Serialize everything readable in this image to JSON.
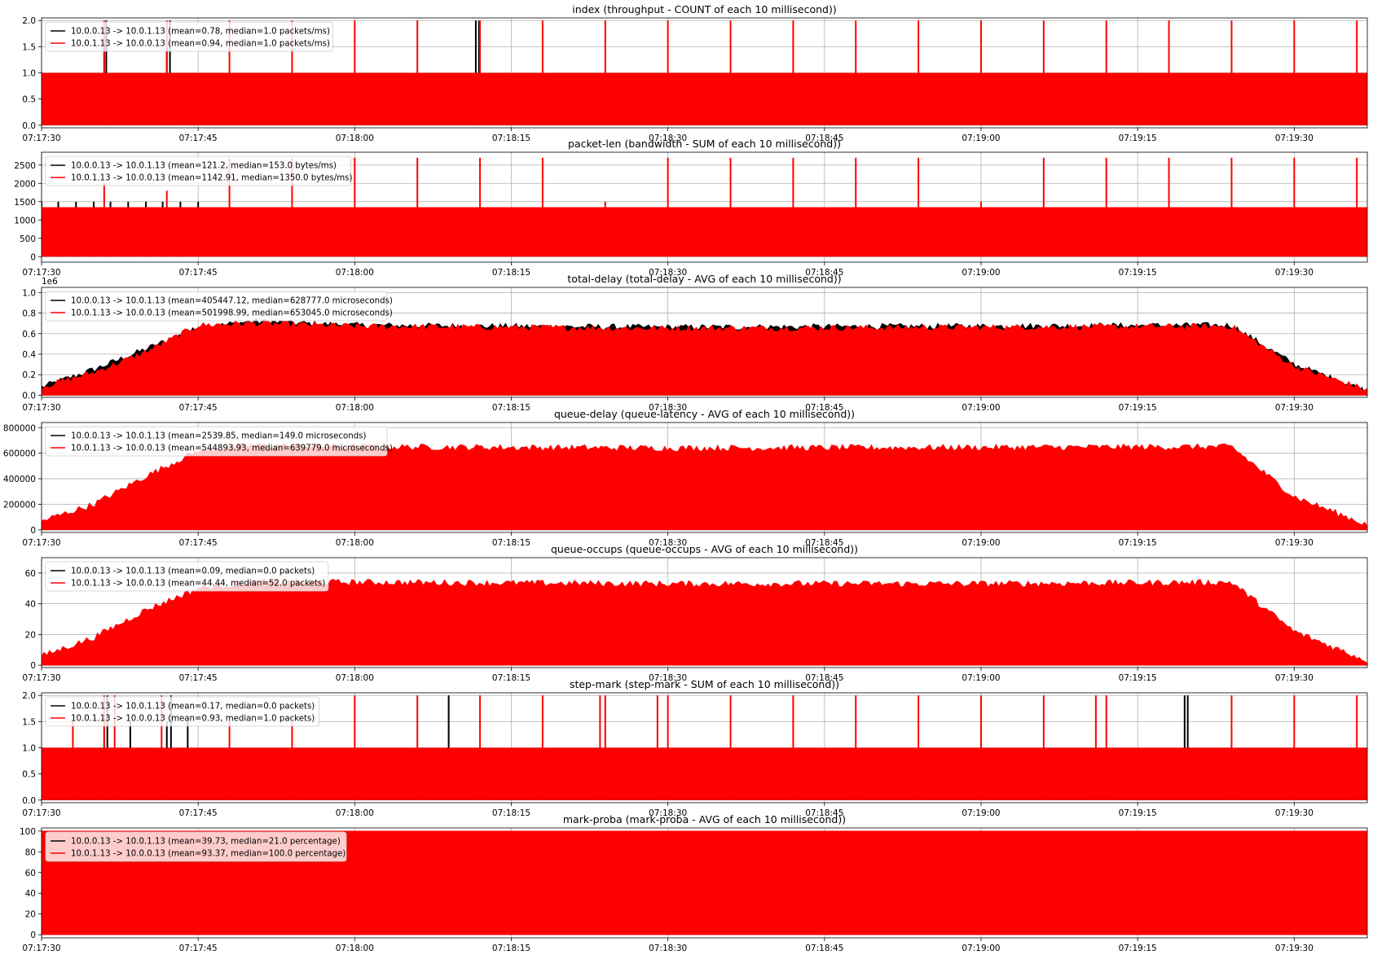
{
  "time_ticks": [
    "07:17:30",
    "07:17:45",
    "07:18:00",
    "07:18:15",
    "07:18:30",
    "07:18:45",
    "07:19:00",
    "07:19:15",
    "07:19:30"
  ],
  "x_range": [
    "07:17:30",
    "07:19:37"
  ],
  "colors": {
    "series_a": "#000000",
    "series_b": "#ff0000",
    "grid": "#b0b0b0"
  },
  "chart_data": [
    {
      "type": "area",
      "title": "index (throughput - COUNT of each 10 millisecond))",
      "xlabel": "",
      "ylabel": "",
      "ylim": [
        -0.05,
        2.05
      ],
      "yticks": [
        0.0,
        0.5,
        1.0,
        1.5,
        2.0
      ],
      "ytick_labels": [
        "0.0",
        "0.5",
        "1.0",
        "1.5",
        "2.0"
      ],
      "offset_text": "",
      "grid": true,
      "legend_position": "upper-left",
      "series": [
        {
          "name": "10.0.0.13 -> 10.0.1.13 (mean=0.78, median=1.0 packets/ms)",
          "color": "#000000",
          "base": 1.0,
          "spikes": [
            [
              "07:17:36",
              1.5
            ],
            [
              "07:17:36.2",
              2.0
            ],
            [
              "07:17:42",
              1.5
            ],
            [
              "07:17:42.3",
              2.0
            ],
            [
              "07:18:11.6",
              2.0
            ],
            [
              "07:18:11.9",
              2.0
            ]
          ]
        },
        {
          "name": "10.0.1.13 -> 10.0.0.13 (mean=0.94, median=1.0 packets/ms)",
          "color": "#ff0000",
          "base": 1.0,
          "spikes": [
            [
              "07:17:36",
              2.0
            ],
            [
              "07:17:42",
              2.0
            ],
            [
              "07:17:48",
              2.0
            ],
            [
              "07:17:54",
              2.0
            ],
            [
              "07:18:00",
              2.0
            ],
            [
              "07:18:06",
              2.0
            ],
            [
              "07:18:12",
              2.0
            ],
            [
              "07:18:18",
              2.0
            ],
            [
              "07:18:24",
              2.0
            ],
            [
              "07:18:30",
              2.0
            ],
            [
              "07:18:36",
              2.0
            ],
            [
              "07:18:42",
              2.0
            ],
            [
              "07:18:48",
              2.0
            ],
            [
              "07:18:54",
              2.0
            ],
            [
              "07:19:00",
              2.0
            ],
            [
              "07:19:06",
              2.0
            ],
            [
              "07:19:12",
              2.0
            ],
            [
              "07:19:18",
              2.0
            ],
            [
              "07:19:24",
              2.0
            ],
            [
              "07:19:30",
              2.0
            ],
            [
              "07:19:36",
              2.0
            ]
          ]
        }
      ]
    },
    {
      "type": "area",
      "title": "packet-len (bandwidth - SUM of each 10 millisecond))",
      "xlabel": "",
      "ylabel": "",
      "ylim": [
        -150,
        2850
      ],
      "yticks": [
        0,
        500,
        1000,
        1500,
        2000,
        2500
      ],
      "ytick_labels": [
        "0",
        "500",
        "1000",
        "1500",
        "2000",
        "2500"
      ],
      "offset_text": "",
      "grid": true,
      "legend_position": "upper-left",
      "series": [
        {
          "name": "10.0.0.13 -> 10.0.1.13 (mean=121.2, median=153.0 bytes/ms)",
          "color": "#000000",
          "base": 1350,
          "spikes": [
            [
              "07:17:30",
              1500
            ],
            [
              "07:17:31.6",
              1500
            ],
            [
              "07:17:33.3",
              1500
            ],
            [
              "07:17:35",
              1500
            ],
            [
              "07:17:36.6",
              1500
            ],
            [
              "07:17:38.3",
              1500
            ],
            [
              "07:17:40",
              1500
            ],
            [
              "07:17:41.6",
              1500
            ],
            [
              "07:17:43.3",
              1500
            ],
            [
              "07:17:45",
              1500
            ]
          ]
        },
        {
          "name": "10.0.1.13 -> 10.0.0.13 (mean=1142.91, median=1350.0 bytes/ms)",
          "color": "#ff0000",
          "base": 1350,
          "spikes": [
            [
              "07:17:36",
              2000
            ],
            [
              "07:17:42",
              1800
            ],
            [
              "07:17:48",
              2700
            ],
            [
              "07:17:54",
              2700
            ],
            [
              "07:18:00",
              2700
            ],
            [
              "07:18:06",
              2700
            ],
            [
              "07:18:12",
              2700
            ],
            [
              "07:18:18",
              2700
            ],
            [
              "07:18:24",
              1500
            ],
            [
              "07:18:30",
              2700
            ],
            [
              "07:18:36",
              2700
            ],
            [
              "07:18:42",
              2700
            ],
            [
              "07:18:48",
              2700
            ],
            [
              "07:18:54",
              2700
            ],
            [
              "07:19:00",
              1500
            ],
            [
              "07:19:06",
              2700
            ],
            [
              "07:19:12",
              2700
            ],
            [
              "07:19:18",
              2700
            ],
            [
              "07:19:24",
              2700
            ],
            [
              "07:19:30",
              2700
            ],
            [
              "07:19:36",
              2700
            ]
          ]
        }
      ]
    },
    {
      "type": "area",
      "title": "total-delay (total-delay - AVG of each 10 millisecond))",
      "xlabel": "",
      "ylabel": "",
      "ylim": [
        -0.02,
        1.05
      ],
      "yticks": [
        0.0,
        0.2,
        0.4,
        0.6,
        0.8,
        1.0
      ],
      "ytick_labels": [
        "0.0",
        "0.2",
        "0.4",
        "0.6",
        "0.8",
        "1.0"
      ],
      "offset_text": "1e6",
      "grid": true,
      "legend_position": "upper-left",
      "series": [
        {
          "name": "10.0.0.13 -> 10.0.1.13 (mean=405447.12, median=628777.0 microseconds)",
          "color": "#000000",
          "profile": [
            [
              "07:17:30",
              0.08
            ],
            [
              "07:17:35",
              0.25
            ],
            [
              "07:17:40",
              0.45
            ],
            [
              "07:17:45",
              0.65
            ],
            [
              "07:17:50",
              0.72
            ],
            [
              "07:18:00",
              0.68
            ],
            [
              "07:18:30",
              0.66
            ],
            [
              "07:19:24",
              0.68
            ],
            [
              "07:19:30",
              0.3
            ],
            [
              "07:19:37",
              0.04
            ]
          ]
        },
        {
          "name": "10.0.1.13 -> 10.0.0.13 (mean=501998.99, median=653045.0 microseconds)",
          "color": "#ff0000",
          "profile": [
            [
              "07:17:30",
              0.08
            ],
            [
              "07:17:35",
              0.22
            ],
            [
              "07:17:40",
              0.42
            ],
            [
              "07:17:45",
              0.68
            ],
            [
              "07:17:50",
              0.7
            ],
            [
              "07:18:00",
              0.67
            ],
            [
              "07:18:30",
              0.65
            ],
            [
              "07:19:00",
              0.66
            ],
            [
              "07:19:24",
              0.67
            ],
            [
              "07:19:30",
              0.28
            ],
            [
              "07:19:37",
              0.05
            ]
          ]
        }
      ]
    },
    {
      "type": "area",
      "title": "queue-delay (queue-latency - AVG of each 10 millisecond))",
      "xlabel": "",
      "ylabel": "",
      "ylim": [
        -20000,
        840000
      ],
      "yticks": [
        0,
        200000,
        400000,
        600000,
        800000
      ],
      "ytick_labels": [
        "0",
        "200000",
        "400000",
        "600000",
        "800000"
      ],
      "offset_text": "",
      "grid": true,
      "legend_position": "upper-left",
      "series": [
        {
          "name": "10.0.0.13 -> 10.0.1.13 (mean=2539.85, median=149.0 microseconds)",
          "color": "#000000",
          "profile": [
            [
              "07:17:30",
              0
            ],
            [
              "07:19:37",
              0
            ]
          ]
        },
        {
          "name": "10.0.1.13 -> 10.0.0.13 (mean=544893.93, median=639779.0 microseconds)",
          "color": "#ff0000",
          "profile": [
            [
              "07:17:30",
              70000
            ],
            [
              "07:17:35",
              200000
            ],
            [
              "07:17:40",
              420000
            ],
            [
              "07:17:45",
              620000
            ],
            [
              "07:17:50",
              660000
            ],
            [
              "07:18:00",
              650000
            ],
            [
              "07:18:30",
              640000
            ],
            [
              "07:19:00",
              645000
            ],
            [
              "07:19:24",
              650000
            ],
            [
              "07:19:30",
              260000
            ],
            [
              "07:19:37",
              40000
            ]
          ]
        }
      ]
    },
    {
      "type": "area",
      "title": "queue-occups (queue-occups - AVG of each 10 millisecond))",
      "xlabel": "",
      "ylabel": "",
      "ylim": [
        -1.5,
        70
      ],
      "yticks": [
        0,
        20,
        40,
        60
      ],
      "ytick_labels": [
        "0",
        "20",
        "40",
        "60"
      ],
      "offset_text": "",
      "grid": true,
      "legend_position": "upper-left",
      "series": [
        {
          "name": "10.0.0.13 -> 10.0.1.13 (mean=0.09, median=0.0 packets)",
          "color": "#000000",
          "profile": [
            [
              "07:17:30",
              0
            ],
            [
              "07:19:37",
              0
            ]
          ]
        },
        {
          "name": "10.0.1.13 -> 10.0.0.13 (mean=44.44, median=52.0 packets)",
          "color": "#ff0000",
          "profile": [
            [
              "07:17:30",
              6
            ],
            [
              "07:17:35",
              18
            ],
            [
              "07:17:40",
              36
            ],
            [
              "07:17:45",
              50
            ],
            [
              "07:17:50",
              54
            ],
            [
              "07:18:00",
              54
            ],
            [
              "07:18:30",
              53
            ],
            [
              "07:19:00",
              53
            ],
            [
              "07:19:24",
              54
            ],
            [
              "07:19:30",
              22
            ],
            [
              "07:19:37",
              3
            ]
          ]
        }
      ]
    },
    {
      "type": "area",
      "title": "step-mark (step-mark - SUM of each 10 millisecond))",
      "xlabel": "",
      "ylabel": "",
      "ylim": [
        -0.05,
        2.05
      ],
      "yticks": [
        0.0,
        0.5,
        1.0,
        1.5,
        2.0
      ],
      "ytick_labels": [
        "0.0",
        "0.5",
        "1.0",
        "1.5",
        "2.0"
      ],
      "offset_text": "",
      "grid": true,
      "legend_position": "upper-left",
      "series": [
        {
          "name": "10.0.0.13 -> 10.0.1.13 (mean=0.17, median=0.0 packets)",
          "color": "#000000",
          "base": 1.0,
          "spikes": [
            [
              "07:17:36",
              1.5
            ],
            [
              "07:17:36.3",
              2.0
            ],
            [
              "07:17:38.5",
              1.5
            ],
            [
              "07:17:42",
              1.5
            ],
            [
              "07:17:42.4",
              2.0
            ],
            [
              "07:17:44",
              1.5
            ],
            [
              "07:18:09",
              2.0
            ],
            [
              "07:19:19.5",
              2.0
            ],
            [
              "07:19:19.8",
              2.0
            ]
          ]
        },
        {
          "name": "10.0.1.13 -> 10.0.0.13 (mean=0.93, median=1.0 packets)",
          "color": "#ff0000",
          "base": 1.0,
          "spikes": [
            [
              "07:17:33",
              1.5
            ],
            [
              "07:17:36",
              2.0
            ],
            [
              "07:17:37",
              2.0
            ],
            [
              "07:17:41.5",
              2.0
            ],
            [
              "07:17:48",
              1.5
            ],
            [
              "07:17:54",
              1.5
            ],
            [
              "07:18:00",
              2.0
            ],
            [
              "07:18:06",
              2.0
            ],
            [
              "07:18:12",
              2.0
            ],
            [
              "07:18:18",
              2.0
            ],
            [
              "07:18:23.5",
              2.0
            ],
            [
              "07:18:24",
              2.0
            ],
            [
              "07:18:29",
              2.0
            ],
            [
              "07:18:30",
              2.0
            ],
            [
              "07:18:36",
              2.0
            ],
            [
              "07:18:42",
              2.0
            ],
            [
              "07:18:48",
              2.0
            ],
            [
              "07:18:54",
              2.0
            ],
            [
              "07:19:00",
              2.0
            ],
            [
              "07:19:06",
              2.0
            ],
            [
              "07:19:11",
              2.0
            ],
            [
              "07:19:12",
              2.0
            ],
            [
              "07:19:24",
              2.0
            ],
            [
              "07:19:30",
              2.0
            ],
            [
              "07:19:36",
              2.0
            ]
          ]
        }
      ]
    },
    {
      "type": "area",
      "title": "mark-proba (mark-proba - AVG of each 10 millisecond))",
      "xlabel": "",
      "ylabel": "",
      "ylim": [
        -3,
        103
      ],
      "yticks": [
        0,
        20,
        40,
        60,
        80,
        100
      ],
      "ytick_labels": [
        "0",
        "20",
        "40",
        "60",
        "80",
        "100"
      ],
      "offset_text": "",
      "grid": true,
      "legend_position": "upper-left",
      "series": [
        {
          "name": "10.0.0.13 -> 10.0.1.13 (mean=39.73, median=21.0 percentage)",
          "color": "#000000",
          "profile": [
            [
              "07:17:30",
              100
            ],
            [
              "07:19:37",
              100
            ]
          ]
        },
        {
          "name": "10.0.1.13 -> 10.0.0.13 (mean=93.37, median=100.0 percentage)",
          "color": "#ff0000",
          "profile": [
            [
              "07:17:30",
              100
            ],
            [
              "07:19:37",
              100
            ]
          ]
        }
      ]
    }
  ]
}
